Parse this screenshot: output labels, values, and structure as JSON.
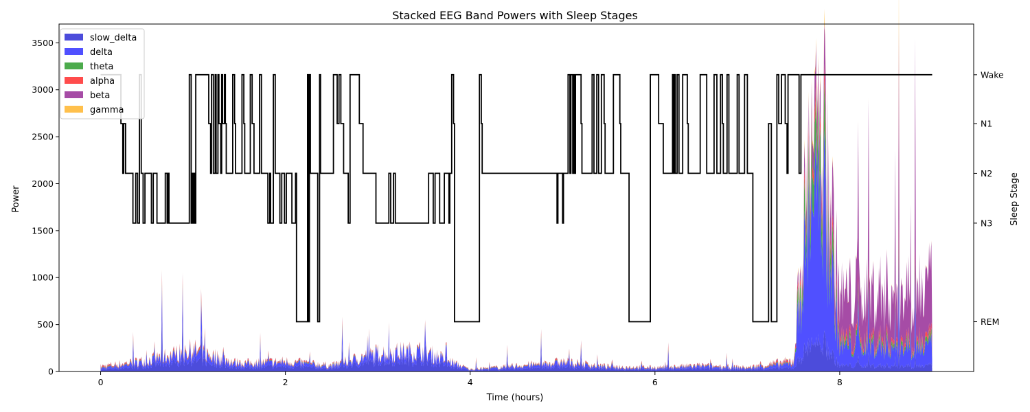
{
  "chart_data": {
    "type": "area",
    "title": "Stacked EEG Band Powers with Sleep Stages",
    "xlabel": "Time (hours)",
    "ylabel": "Power",
    "ylabel_right": "Sleep Stage",
    "xlim": [
      -0.45,
      9.45
    ],
    "ylim": [
      0,
      3700
    ],
    "x_ticks": [
      0,
      2,
      4,
      6,
      8
    ],
    "y_ticks": [
      0,
      500,
      1000,
      1500,
      2000,
      2500,
      3000,
      3500
    ],
    "stage_ticks": [
      {
        "label": "Wake",
        "value": 3160
      },
      {
        "label": "N1",
        "value": 2640
      },
      {
        "label": "N2",
        "value": 2110
      },
      {
        "label": "N3",
        "value": 1580
      },
      {
        "label": "REM",
        "value": 530
      }
    ],
    "grid": false,
    "legend_position": "top-left",
    "series": [
      {
        "name": "slow_delta",
        "color": "#0000cc",
        "alpha": 0.7
      },
      {
        "name": "delta",
        "color": "#1515ff",
        "alpha": 0.75
      },
      {
        "name": "theta",
        "color": "#008800",
        "alpha": 0.7
      },
      {
        "name": "alpha",
        "color": "#ff0000",
        "alpha": 0.7
      },
      {
        "name": "beta",
        "color": "#800080",
        "alpha": 0.7
      },
      {
        "name": "gamma",
        "color": "#ffa500",
        "alpha": 0.7
      }
    ],
    "band_power_profile": [
      {
        "x": 0.0,
        "slow_delta": 20,
        "delta": 15,
        "theta": 5,
        "alpha": 10,
        "beta": 5,
        "gamma": 2
      },
      {
        "x": 0.5,
        "slow_delta": 60,
        "delta": 40,
        "theta": 5,
        "alpha": 8,
        "beta": 5,
        "gamma": 2
      },
      {
        "x": 1.0,
        "slow_delta": 120,
        "delta": 80,
        "theta": 8,
        "alpha": 15,
        "beta": 8,
        "gamma": 3
      },
      {
        "x": 1.5,
        "slow_delta": 40,
        "delta": 30,
        "theta": 5,
        "alpha": 8,
        "beta": 5,
        "gamma": 2
      },
      {
        "x": 2.0,
        "slow_delta": 55,
        "delta": 35,
        "theta": 5,
        "alpha": 8,
        "beta": 5,
        "gamma": 2
      },
      {
        "x": 2.5,
        "slow_delta": 30,
        "delta": 20,
        "theta": 5,
        "alpha": 6,
        "beta": 4,
        "gamma": 1
      },
      {
        "x": 3.0,
        "slow_delta": 110,
        "delta": 70,
        "theta": 5,
        "alpha": 8,
        "beta": 5,
        "gamma": 2
      },
      {
        "x": 3.5,
        "slow_delta": 120,
        "delta": 80,
        "theta": 5,
        "alpha": 8,
        "beta": 5,
        "gamma": 2
      },
      {
        "x": 4.0,
        "slow_delta": 10,
        "delta": 5,
        "theta": 2,
        "alpha": 3,
        "beta": 2,
        "gamma": 1
      },
      {
        "x": 4.5,
        "slow_delta": 30,
        "delta": 20,
        "theta": 4,
        "alpha": 5,
        "beta": 3,
        "gamma": 1
      },
      {
        "x": 5.0,
        "slow_delta": 50,
        "delta": 35,
        "theta": 5,
        "alpha": 8,
        "beta": 5,
        "gamma": 2
      },
      {
        "x": 5.5,
        "slow_delta": 25,
        "delta": 15,
        "theta": 4,
        "alpha": 6,
        "beta": 4,
        "gamma": 1
      },
      {
        "x": 6.0,
        "slow_delta": 20,
        "delta": 12,
        "theta": 3,
        "alpha": 5,
        "beta": 3,
        "gamma": 1
      },
      {
        "x": 6.5,
        "slow_delta": 30,
        "delta": 20,
        "theta": 4,
        "alpha": 6,
        "beta": 4,
        "gamma": 1
      },
      {
        "x": 7.0,
        "slow_delta": 20,
        "delta": 12,
        "theta": 3,
        "alpha": 5,
        "beta": 3,
        "gamma": 1
      },
      {
        "x": 7.5,
        "slow_delta": 40,
        "delta": 40,
        "theta": 8,
        "alpha": 15,
        "beta": 10,
        "gamma": 4
      },
      {
        "x": 7.75,
        "slow_delta": 400,
        "delta": 2000,
        "theta": 500,
        "alpha": 150,
        "beta": 350,
        "gamma": 50
      },
      {
        "x": 8.0,
        "slow_delta": 60,
        "delta": 200,
        "theta": 40,
        "alpha": 40,
        "beta": 460,
        "gamma": 5
      },
      {
        "x": 8.5,
        "slow_delta": 60,
        "delta": 200,
        "theta": 40,
        "alpha": 40,
        "beta": 510,
        "gamma": 5
      },
      {
        "x": 9.0,
        "slow_delta": 60,
        "delta": 200,
        "theta": 40,
        "alpha": 40,
        "beta": 560,
        "gamma": 5
      }
    ],
    "hypnogram": [
      [
        0,
        3160
      ],
      [
        0.22,
        2640
      ],
      [
        0.24,
        2110
      ],
      [
        0.25,
        2640
      ],
      [
        0.27,
        2110
      ],
      [
        0.35,
        1580
      ],
      [
        0.38,
        2110
      ],
      [
        0.4,
        1580
      ],
      [
        0.42,
        3160
      ],
      [
        0.44,
        2110
      ],
      [
        0.46,
        1580
      ],
      [
        0.48,
        2110
      ],
      [
        0.55,
        1580
      ],
      [
        0.57,
        2110
      ],
      [
        0.6,
        2110
      ],
      [
        0.61,
        1580
      ],
      [
        0.7,
        2110
      ],
      [
        0.72,
        1580
      ],
      [
        0.73,
        2110
      ],
      [
        0.74,
        1580
      ],
      [
        0.96,
        3160
      ],
      [
        0.98,
        1580
      ],
      [
        0.99,
        2110
      ],
      [
        1.0,
        1580
      ],
      [
        1.01,
        2110
      ],
      [
        1.02,
        1580
      ],
      [
        1.03,
        3160
      ],
      [
        1.17,
        2640
      ],
      [
        1.19,
        2110
      ],
      [
        1.2,
        3160
      ],
      [
        1.22,
        2110
      ],
      [
        1.24,
        3160
      ],
      [
        1.25,
        2110
      ],
      [
        1.27,
        3160
      ],
      [
        1.28,
        2640
      ],
      [
        1.3,
        2110
      ],
      [
        1.31,
        3160
      ],
      [
        1.32,
        2640
      ],
      [
        1.34,
        3160
      ],
      [
        1.35,
        2640
      ],
      [
        1.36,
        2110
      ],
      [
        1.43,
        3160
      ],
      [
        1.45,
        2640
      ],
      [
        1.46,
        2110
      ],
      [
        1.53,
        3160
      ],
      [
        1.55,
        2640
      ],
      [
        1.56,
        2110
      ],
      [
        1.62,
        3160
      ],
      [
        1.64,
        2640
      ],
      [
        1.66,
        2110
      ],
      [
        1.72,
        3160
      ],
      [
        1.74,
        2110
      ],
      [
        1.81,
        1580
      ],
      [
        1.83,
        2110
      ],
      [
        1.84,
        1580
      ],
      [
        1.87,
        3160
      ],
      [
        1.89,
        2110
      ],
      [
        1.94,
        1580
      ],
      [
        1.96,
        2110
      ],
      [
        1.99,
        1580
      ],
      [
        2.01,
        2110
      ],
      [
        2.07,
        1580
      ],
      [
        2.11,
        2110
      ],
      [
        2.12,
        530
      ],
      [
        2.24,
        3160
      ],
      [
        2.25,
        530
      ],
      [
        2.26,
        3160
      ],
      [
        2.27,
        2110
      ],
      [
        2.35,
        530
      ],
      [
        2.37,
        3160
      ],
      [
        2.38,
        2110
      ],
      [
        2.52,
        3160
      ],
      [
        2.56,
        2640
      ],
      [
        2.58,
        3160
      ],
      [
        2.6,
        2640
      ],
      [
        2.63,
        2110
      ],
      [
        2.68,
        1580
      ],
      [
        2.7,
        3160
      ],
      [
        2.8,
        2640
      ],
      [
        2.84,
        2110
      ],
      [
        2.98,
        1580
      ],
      [
        3.12,
        2110
      ],
      [
        3.14,
        1580
      ],
      [
        3.17,
        2110
      ],
      [
        3.19,
        1580
      ],
      [
        3.55,
        2110
      ],
      [
        3.6,
        1580
      ],
      [
        3.62,
        2110
      ],
      [
        3.67,
        1580
      ],
      [
        3.72,
        2110
      ],
      [
        3.77,
        1580
      ],
      [
        3.78,
        2110
      ],
      [
        3.8,
        3160
      ],
      [
        3.82,
        2640
      ],
      [
        3.83,
        530
      ],
      [
        4.1,
        3160
      ],
      [
        4.12,
        2640
      ],
      [
        4.13,
        2110
      ],
      [
        4.94,
        1580
      ],
      [
        4.95,
        2110
      ],
      [
        5.0,
        1580
      ],
      [
        5.01,
        2110
      ],
      [
        5.06,
        3160
      ],
      [
        5.08,
        2110
      ],
      [
        5.09,
        3160
      ],
      [
        5.11,
        2110
      ],
      [
        5.12,
        3160
      ],
      [
        5.13,
        2110
      ],
      [
        5.14,
        3160
      ],
      [
        5.2,
        2640
      ],
      [
        5.21,
        2110
      ],
      [
        5.32,
        3160
      ],
      [
        5.34,
        2110
      ],
      [
        5.37,
        3160
      ],
      [
        5.39,
        2110
      ],
      [
        5.42,
        3160
      ],
      [
        5.45,
        2640
      ],
      [
        5.46,
        2110
      ],
      [
        5.55,
        3160
      ],
      [
        5.62,
        2640
      ],
      [
        5.63,
        2110
      ],
      [
        5.72,
        530
      ],
      [
        5.95,
        3160
      ],
      [
        6.04,
        2640
      ],
      [
        6.09,
        2110
      ],
      [
        6.19,
        3160
      ],
      [
        6.2,
        2110
      ],
      [
        6.21,
        3160
      ],
      [
        6.22,
        2110
      ],
      [
        6.24,
        3160
      ],
      [
        6.26,
        2110
      ],
      [
        6.3,
        3160
      ],
      [
        6.35,
        2640
      ],
      [
        6.36,
        2110
      ],
      [
        6.49,
        3160
      ],
      [
        6.56,
        2110
      ],
      [
        6.64,
        3160
      ],
      [
        6.67,
        2110
      ],
      [
        6.71,
        3160
      ],
      [
        6.73,
        2640
      ],
      [
        6.74,
        2110
      ],
      [
        6.78,
        3160
      ],
      [
        6.8,
        2110
      ],
      [
        6.89,
        3160
      ],
      [
        6.91,
        2110
      ],
      [
        6.97,
        3160
      ],
      [
        7.0,
        2110
      ],
      [
        7.06,
        530
      ],
      [
        7.23,
        2640
      ],
      [
        7.26,
        530
      ],
      [
        7.32,
        3160
      ],
      [
        7.34,
        2640
      ],
      [
        7.37,
        3160
      ],
      [
        7.41,
        2640
      ],
      [
        7.43,
        2110
      ],
      [
        7.44,
        3160
      ],
      [
        7.56,
        2110
      ],
      [
        7.58,
        3160
      ],
      [
        9.0,
        3160
      ]
    ]
  }
}
